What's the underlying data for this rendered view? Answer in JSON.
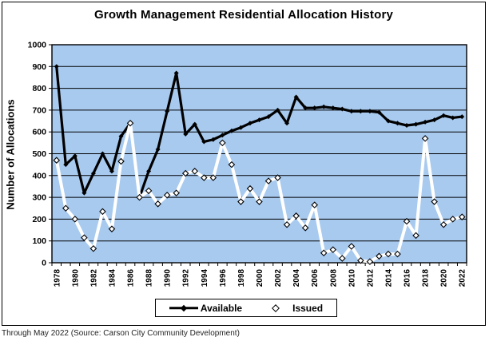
{
  "title": "Growth Management Residential Allocation History",
  "y_axis_title": "Number of Allocations",
  "source_note": "Through May 2022 (Source: Carson City Community Development)",
  "legend": {
    "available_label": "Available",
    "issued_label": "Issued"
  },
  "colors": {
    "plot_bg": "#A8CAEF",
    "grid": "#000000",
    "available_line": "#000000",
    "issued_line": "#FFFFFF",
    "issued_marker_outline": "#000000",
    "border": "#000000"
  },
  "chart_data": {
    "type": "line",
    "title": "Growth Management Residential Allocation History",
    "xlabel": "",
    "ylabel": "Number of Allocations",
    "ylim": [
      0,
      1000
    ],
    "y_ticks": [
      0,
      100,
      200,
      300,
      400,
      500,
      600,
      700,
      800,
      900,
      1000
    ],
    "grid": true,
    "legend_position": "bottom",
    "x": [
      1978,
      1979,
      1980,
      1981,
      1982,
      1983,
      1984,
      1985,
      1986,
      1987,
      1988,
      1989,
      1990,
      1991,
      1992,
      1993,
      1994,
      1995,
      1996,
      1997,
      1998,
      1999,
      2000,
      2001,
      2002,
      2003,
      2004,
      2005,
      2006,
      2007,
      2008,
      2009,
      2010,
      2011,
      2012,
      2013,
      2014,
      2015,
      2016,
      2017,
      2018,
      2019,
      2020,
      2021,
      2022
    ],
    "x_tick_labels": [
      "1978",
      "1980",
      "1982",
      "1984",
      "1986",
      "1988",
      "1990",
      "1992",
      "1994",
      "1996",
      "1998",
      "2000",
      "2002",
      "2004",
      "2006",
      "2008",
      "2010",
      "2012",
      "2014",
      "2016",
      "2018",
      "2020",
      "2022"
    ],
    "series": [
      {
        "name": "Available",
        "color": "#000000",
        "marker": "diamond",
        "values": [
          900,
          450,
          490,
          320,
          410,
          500,
          420,
          580,
          640,
          300,
          420,
          520,
          695,
          870,
          590,
          635,
          555,
          565,
          585,
          605,
          620,
          640,
          655,
          670,
          700,
          640,
          760,
          710,
          710,
          715,
          710,
          705,
          695,
          695,
          695,
          690,
          650,
          640,
          630,
          635,
          645,
          655,
          675,
          665,
          670
        ]
      },
      {
        "name": "Issued",
        "color": "#FFFFFF",
        "marker": "diamond-outlined",
        "values": [
          470,
          250,
          200,
          115,
          65,
          235,
          155,
          465,
          640,
          300,
          330,
          270,
          310,
          320,
          410,
          420,
          390,
          390,
          550,
          450,
          280,
          340,
          280,
          375,
          390,
          175,
          215,
          160,
          265,
          45,
          60,
          20,
          75,
          10,
          5,
          30,
          40,
          40,
          190,
          125,
          570,
          280,
          175,
          200,
          210
        ]
      }
    ]
  }
}
